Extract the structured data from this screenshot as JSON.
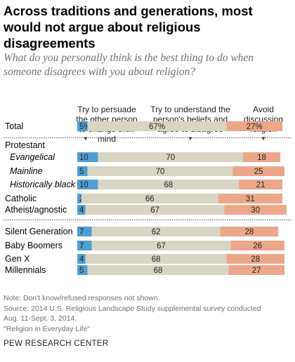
{
  "title": "Across traditions and generations, most would not argue about religious disagreements",
  "subtitle": "What do you personally think is the best thing to do when someone disagrees with you about religion?",
  "column_headers": {
    "persuade": "Try to persuade the other person to change their mind",
    "understand": "Try to understand the person's beliefs and agree to disagree",
    "avoid": "Avoid discussing religion"
  },
  "colors": {
    "persuade": "#4f9fd4",
    "understand": "#d9d5c5",
    "avoid": "#eca78a",
    "group_label": "#000000"
  },
  "chart_data": {
    "type": "bar",
    "stacked": true,
    "orientation": "horizontal",
    "xlim": [
      0,
      100
    ],
    "categories": [
      "Total",
      "Protestant",
      "Evangelical",
      "Mainline",
      "Historically black",
      "Catholic",
      "Atheist/agnostic",
      "Silent Generation",
      "Baby Boomers",
      "Gen X",
      "Millennials"
    ],
    "series": [
      {
        "name": "Try to persuade the other person to change their mind",
        "values": [
          5,
          null,
          10,
          5,
          10,
          2,
          4,
          7,
          7,
          4,
          5
        ],
        "labels": [
          "5%",
          "",
          "10",
          "5",
          "10",
          "2",
          "4",
          "7",
          "7",
          "4",
          "5"
        ]
      },
      {
        "name": "Try to understand the person's beliefs and agree to disagree",
        "values": [
          67,
          null,
          70,
          70,
          68,
          66,
          67,
          62,
          67,
          68,
          68
        ],
        "labels": [
          "67%",
          "",
          "70",
          "70",
          "68",
          "66",
          "67",
          "62",
          "67",
          "68",
          "68"
        ]
      },
      {
        "name": "Avoid discussing religion",
        "values": [
          27,
          null,
          18,
          25,
          21,
          31,
          30,
          28,
          26,
          28,
          27
        ],
        "labels": [
          "27%",
          "",
          "18",
          "25",
          "21",
          "31",
          "30",
          "28",
          "26",
          "28",
          "27"
        ]
      }
    ],
    "italic_categories": [
      "Evangelical",
      "Mainline",
      "Historically black"
    ],
    "header_categories": [
      "Protestant"
    ],
    "dividers_after": [
      "Total",
      "Atheist/agnostic"
    ]
  },
  "notes": [
    "Note: Don't know/refused responses not shown.",
    "Source: 2014 U.S. Religious Landscape Study supplemental survey conducted",
    "Aug. 11-Sept. 3, 2014.",
    "\"Religion in Everyday Life\""
  ],
  "footer": "PEW RESEARCH CENTER"
}
